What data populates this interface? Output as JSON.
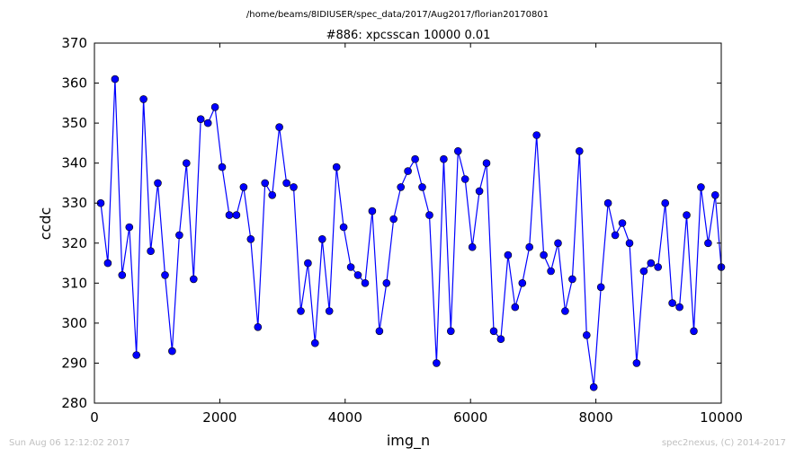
{
  "suptitle": "/home/beams/8IDIUSER/spec_data/2017/Aug2017/florian20170801",
  "footer": {
    "timestamp": "Sun Aug 06 12:12:02 2017",
    "credit": "spec2nexus, (C) 2014-2017"
  },
  "colors": {
    "series": "#0000ff",
    "axes": "#000000",
    "footer": "#c0c0c0"
  },
  "chart_data": {
    "type": "line",
    "title": "#886: xpcsscan 10000 0.01",
    "xlabel": "img_n",
    "ylabel": "ccdc",
    "xlim": [
      0,
      10000
    ],
    "ylim": [
      280,
      370
    ],
    "xticks": [
      0,
      2000,
      4000,
      6000,
      8000,
      10000
    ],
    "yticks": [
      280,
      290,
      300,
      310,
      320,
      330,
      340,
      350,
      360,
      370
    ],
    "grid": false,
    "marker": "circle",
    "series": [
      {
        "x": [
          100,
          214,
          328,
          442,
          556,
          670,
          784,
          898,
          1012,
          1126,
          1240,
          1354,
          1468,
          1582,
          1696,
          1810,
          1924,
          2038,
          2152,
          2266,
          2380,
          2494,
          2608,
          2722,
          2836,
          2950,
          3064,
          3178,
          3292,
          3406,
          3520,
          3634,
          3748,
          3862,
          3976,
          4090,
          4204,
          4318,
          4432,
          4546,
          4660,
          4774,
          4888,
          5002,
          5116,
          5230,
          5344,
          5458,
          5572,
          5686,
          5800,
          5914,
          6028,
          6142,
          6256,
          6370,
          6484,
          6598,
          6712,
          6826,
          6940,
          7054,
          7168,
          7282,
          7396,
          7510,
          7624,
          7738,
          7852,
          7966,
          8080,
          8194,
          8308,
          8422,
          8536,
          8650,
          8764,
          8878,
          8992,
          9106,
          9220,
          9334,
          9448,
          9562,
          9676,
          9790,
          9904,
          10000
        ],
        "values": [
          330,
          315,
          361,
          312,
          324,
          292,
          356,
          318,
          335,
          312,
          293,
          322,
          340,
          311,
          351,
          350,
          354,
          339,
          327,
          327,
          334,
          321,
          299,
          335,
          332,
          349,
          335,
          334,
          303,
          315,
          295,
          321,
          303,
          339,
          324,
          314,
          312,
          310,
          328,
          298,
          310,
          326,
          334,
          338,
          341,
          334,
          327,
          290,
          341,
          298,
          343,
          336,
          319,
          333,
          340,
          298,
          296,
          317,
          304,
          310,
          319,
          347,
          317,
          313,
          320,
          303,
          311,
          343,
          297,
          284,
          309,
          330,
          322,
          325,
          320,
          290,
          313,
          315,
          314,
          330,
          305,
          304,
          327,
          298,
          334,
          320,
          332,
          314
        ]
      }
    ]
  }
}
